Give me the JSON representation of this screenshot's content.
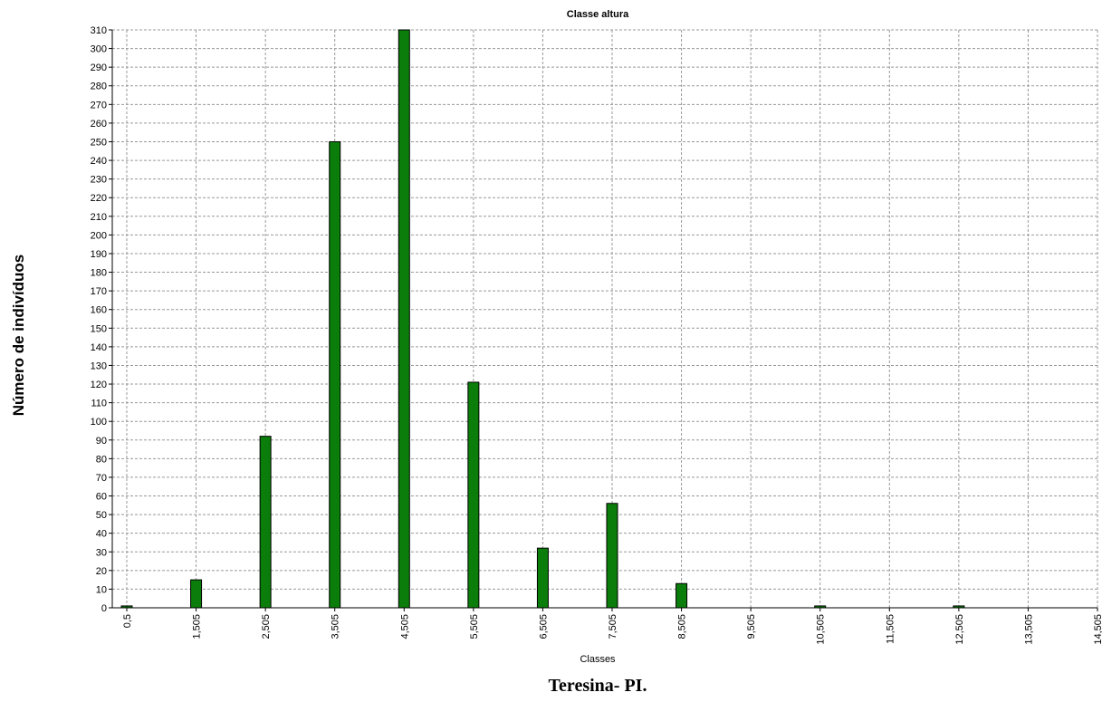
{
  "chart_data": {
    "type": "bar",
    "title": "Classe altura",
    "x_label": "Classes",
    "y_label": "Número de indivíduos",
    "caption": "Teresina- PI.",
    "categories": [
      "0,5",
      "1,505",
      "2,505",
      "3,505",
      "4,505",
      "5,505",
      "6,505",
      "7,505",
      "8,505",
      "9,505",
      "10,505",
      "11,505",
      "12,505",
      "13,505",
      "14,505"
    ],
    "values": [
      1,
      15,
      92,
      250,
      310,
      121,
      32,
      56,
      13,
      0,
      1,
      0,
      1,
      0,
      0
    ],
    "color": "#0a7d0a",
    "ylim": [
      0,
      310
    ],
    "yticks": [
      0,
      10,
      20,
      30,
      40,
      50,
      60,
      70,
      80,
      90,
      100,
      110,
      120,
      130,
      140,
      150,
      160,
      170,
      180,
      190,
      200,
      210,
      220,
      230,
      240,
      250,
      260,
      270,
      280,
      290,
      300,
      310
    ],
    "grid": true
  }
}
